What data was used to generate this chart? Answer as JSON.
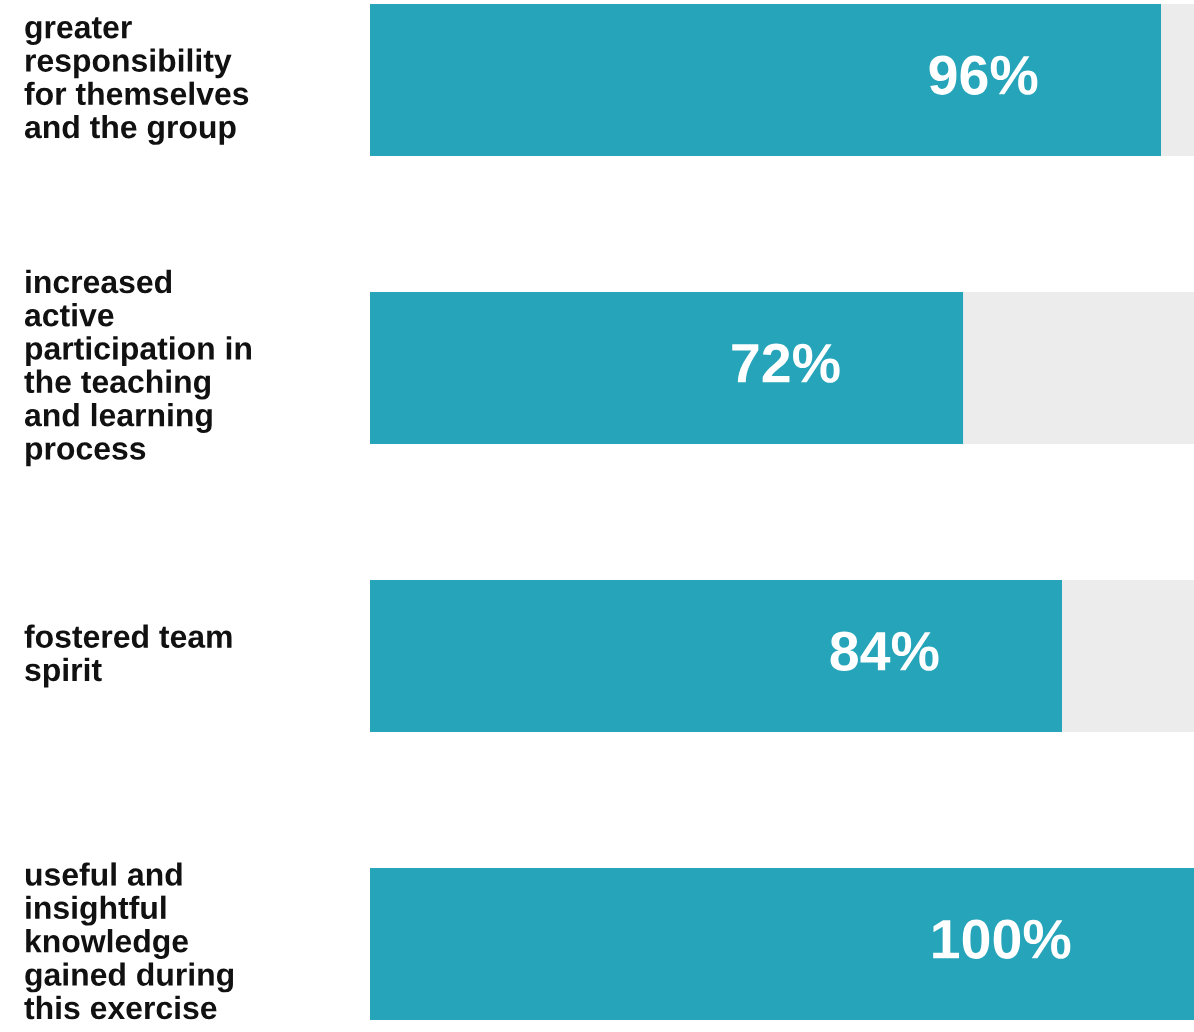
{
  "chart_data": {
    "type": "bar",
    "orientation": "horizontal",
    "stacked": true,
    "xlim": [
      0,
      100
    ],
    "legend": false,
    "categories": [
      "greater\nresponsibility\nfor themselves\nand the group",
      "increased\nactive\nparticipation in\nthe teaching\nand learning\nprocess",
      "fostered team\nspirit",
      "useful and\ninsightful\nknowledge\ngained during\nthis exercise"
    ],
    "series": [
      {
        "color": "#26a5ba",
        "values": [
          96,
          72,
          84,
          100
        ],
        "value_labels": [
          "96%",
          "72%",
          "84%",
          "100%"
        ]
      },
      {
        "color": "#ececec",
        "values": [
          4,
          28,
          16,
          0
        ]
      }
    ]
  }
}
